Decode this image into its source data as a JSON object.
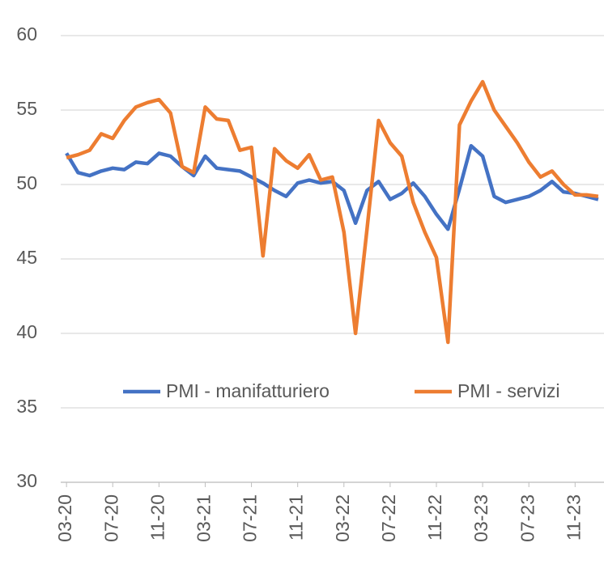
{
  "chart_data": {
    "type": "line",
    "categories": [
      "03-20",
      null,
      null,
      null,
      "07-20",
      null,
      null,
      null,
      "11-20",
      null,
      null,
      null,
      "03-21",
      null,
      null,
      null,
      "07-21",
      null,
      null,
      null,
      "11-21",
      null,
      null,
      null,
      "03-22",
      null,
      null,
      null,
      "07-22",
      null,
      null,
      null,
      "11-22",
      null,
      null,
      null,
      "03-23",
      null,
      null,
      null,
      "07-23",
      null,
      null,
      null,
      "11-23",
      null,
      null
    ],
    "series": [
      {
        "name": "PMI - manifatturiero",
        "color": "#4472c4",
        "values": [
          52.1,
          50.8,
          50.6,
          50.9,
          51.1,
          51.0,
          51.5,
          51.4,
          52.1,
          51.9,
          51.2,
          50.6,
          51.9,
          51.1,
          51.0,
          50.9,
          50.5,
          50.1,
          49.6,
          49.2,
          50.1,
          50.3,
          50.1,
          50.2,
          49.6,
          47.4,
          49.6,
          50.2,
          49.0,
          49.4,
          50.1,
          49.2,
          48.0,
          47.0,
          49.7,
          52.6,
          51.9,
          49.2,
          48.8,
          49.0,
          49.2,
          49.6,
          50.2,
          49.5,
          49.4,
          49.2,
          49.0
        ]
      },
      {
        "name": "PMI - servizi",
        "color": "#ed7d31",
        "values": [
          51.8,
          52.0,
          52.3,
          53.4,
          53.1,
          54.3,
          55.2,
          55.5,
          55.7,
          54.8,
          51.2,
          50.8,
          55.2,
          54.4,
          54.3,
          52.3,
          52.5,
          45.2,
          52.4,
          51.6,
          51.1,
          52.0,
          50.3,
          50.5,
          46.8,
          40.0,
          47.0,
          54.3,
          52.8,
          51.9,
          48.8,
          46.8,
          45.1,
          39.4,
          54.0,
          55.6,
          56.9,
          55.0,
          53.9,
          52.8,
          51.5,
          50.5,
          50.9,
          50.0,
          49.3,
          49.3,
          49.2
        ]
      }
    ],
    "ylim": [
      30,
      60
    ],
    "yticks": [
      30,
      35,
      40,
      45,
      50,
      55,
      60
    ],
    "grid": true,
    "legend": "inside"
  }
}
